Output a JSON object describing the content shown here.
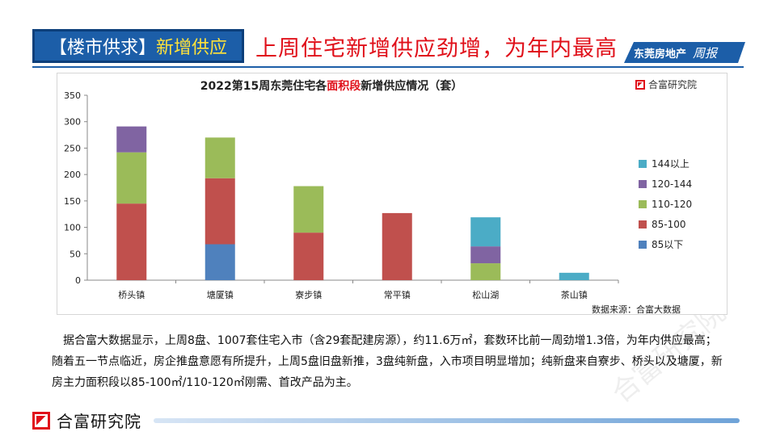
{
  "header": {
    "tag_bracket_open": "【",
    "tag_category": "楼市供求",
    "tag_bracket_close": "】",
    "tag_topic": "新增供应",
    "headline": "上周住宅新增供应劲增，为年内最高",
    "brand_label": "东莞房地产",
    "brand_script": "周报"
  },
  "chart_header": {
    "title_prefix": "2022第15周东莞住宅各",
    "title_highlight": "面积段",
    "title_suffix": "新增供应情况（套）",
    "logo_text": "合富研究院"
  },
  "chart_data": {
    "type": "bar",
    "stacked": true,
    "title": "2022第15周东莞住宅各面积段新增供应情况（套）",
    "categories": [
      "桥头镇",
      "塘厦镇",
      "寮步镇",
      "常平镇",
      "松山湖",
      "茶山镇"
    ],
    "series": [
      {
        "name": "85以下",
        "color": "#4f81bd",
        "values": [
          0,
          68,
          0,
          0,
          0,
          0
        ]
      },
      {
        "name": "85-100",
        "color": "#c0504d",
        "values": [
          145,
          125,
          90,
          127,
          0,
          0
        ]
      },
      {
        "name": "110-120",
        "color": "#9bbb59",
        "values": [
          97,
          77,
          88,
          0,
          32,
          0
        ]
      },
      {
        "name": "120-144",
        "color": "#8064a2",
        "values": [
          49,
          0,
          0,
          0,
          32,
          0
        ]
      },
      {
        "name": "144以上",
        "color": "#4bacc6",
        "values": [
          0,
          0,
          0,
          0,
          55,
          14
        ]
      }
    ],
    "ylim": [
      0,
      350
    ],
    "yticks": [
      0,
      50,
      100,
      150,
      200,
      250,
      300,
      350
    ],
    "grid": false,
    "legend_position": "right"
  },
  "chart_source": "数据来源：合富大数据",
  "body_text": "据合富大数据显示，上周8盘、1007套住宅入市（含29套配建房源），约11.6万㎡，套数环比前一周劲增1.3倍，为年内供应最高；随着五一节点临近，房企推盘意愿有所提升，上周5盘旧盘新推，3盘纯新盘，入市项目明显增加；纯新盘来自寮步、桥头以及塘厦，新房主力面积段以85-100㎡/110-120㎡刚需、首改产品为主。",
  "footer": {
    "org_name": "合富研究院"
  },
  "watermark_text": "合富研究院"
}
